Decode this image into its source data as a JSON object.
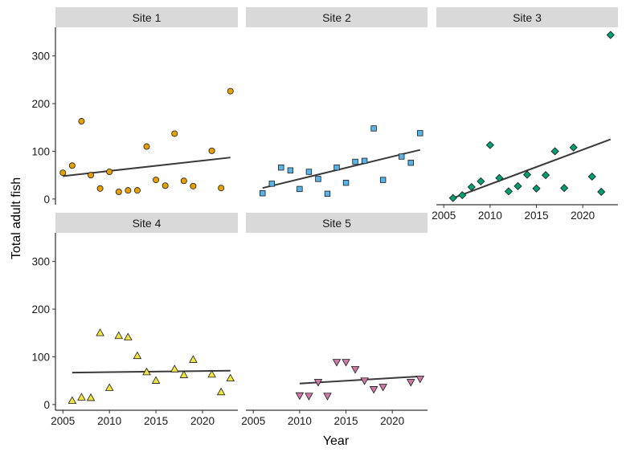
{
  "chart_data": {
    "type": "scatter",
    "xlabel": "Year",
    "ylabel": "Total adult fish",
    "xlim": [
      2004.2,
      2023.8
    ],
    "ylim": [
      -12,
      360
    ],
    "xticks": [
      2005,
      2010,
      2015,
      2020
    ],
    "yticks": [
      0,
      100,
      200,
      300
    ],
    "grid": false,
    "trend": "linear fit per facet",
    "facets": [
      {
        "name": "Site 1",
        "shape": "circle",
        "color": "#E69F00",
        "points": [
          [
            2005,
            55
          ],
          [
            2006,
            70
          ],
          [
            2007,
            163
          ],
          [
            2008,
            50
          ],
          [
            2009,
            22
          ],
          [
            2010,
            57
          ],
          [
            2011,
            15
          ],
          [
            2012,
            18
          ],
          [
            2013,
            18
          ],
          [
            2014,
            110
          ],
          [
            2015,
            40
          ],
          [
            2016,
            28
          ],
          [
            2017,
            137
          ],
          [
            2018,
            38
          ],
          [
            2019,
            27
          ],
          [
            2021,
            101
          ],
          [
            2022,
            23
          ],
          [
            2023,
            226
          ]
        ],
        "trend": [
          [
            2005,
            48
          ],
          [
            2023,
            87
          ]
        ]
      },
      {
        "name": "Site 2",
        "shape": "square",
        "color": "#56B4E9",
        "points": [
          [
            2006,
            12
          ],
          [
            2007,
            32
          ],
          [
            2008,
            66
          ],
          [
            2009,
            60
          ],
          [
            2010,
            21
          ],
          [
            2011,
            57
          ],
          [
            2012,
            42
          ],
          [
            2013,
            11
          ],
          [
            2014,
            66
          ],
          [
            2015,
            34
          ],
          [
            2016,
            78
          ],
          [
            2017,
            80
          ],
          [
            2018,
            148
          ],
          [
            2019,
            40
          ],
          [
            2021,
            89
          ],
          [
            2022,
            76
          ],
          [
            2023,
            138
          ]
        ],
        "trend": [
          [
            2006,
            23
          ],
          [
            2023,
            103
          ]
        ]
      },
      {
        "name": "Site 3",
        "shape": "diamond",
        "color": "#009E73",
        "points": [
          [
            2006,
            2
          ],
          [
            2007,
            8
          ],
          [
            2008,
            25
          ],
          [
            2009,
            37
          ],
          [
            2010,
            113
          ],
          [
            2011,
            44
          ],
          [
            2012,
            16
          ],
          [
            2013,
            27
          ],
          [
            2014,
            51
          ],
          [
            2015,
            22
          ],
          [
            2016,
            50
          ],
          [
            2017,
            100
          ],
          [
            2018,
            23
          ],
          [
            2019,
            108
          ],
          [
            2021,
            47
          ],
          [
            2022,
            15
          ],
          [
            2023,
            344
          ]
        ],
        "trend": [
          [
            2006,
            2
          ],
          [
            2023,
            125
          ]
        ]
      },
      {
        "name": "Site 4",
        "shape": "triangle-up",
        "color": "#F0E442",
        "points": [
          [
            2006,
            8
          ],
          [
            2007,
            15
          ],
          [
            2008,
            14
          ],
          [
            2009,
            150
          ],
          [
            2010,
            35
          ],
          [
            2011,
            144
          ],
          [
            2012,
            141
          ],
          [
            2013,
            102
          ],
          [
            2014,
            68
          ],
          [
            2015,
            50
          ],
          [
            2017,
            74
          ],
          [
            2018,
            62
          ],
          [
            2019,
            94
          ],
          [
            2021,
            63
          ],
          [
            2022,
            26
          ],
          [
            2023,
            55
          ]
        ],
        "trend": [
          [
            2006,
            67
          ],
          [
            2023,
            71
          ]
        ]
      },
      {
        "name": "Site 5",
        "shape": "triangle-down",
        "color": "#CC79A7",
        "points": [
          [
            2010,
            19
          ],
          [
            2011,
            18
          ],
          [
            2012,
            47
          ],
          [
            2013,
            18
          ],
          [
            2014,
            89
          ],
          [
            2015,
            89
          ],
          [
            2016,
            74
          ],
          [
            2017,
            50
          ],
          [
            2018,
            32
          ],
          [
            2019,
            37
          ],
          [
            2022,
            47
          ],
          [
            2023,
            54
          ]
        ],
        "trend": [
          [
            2010,
            44
          ],
          [
            2023,
            59
          ]
        ]
      }
    ]
  }
}
